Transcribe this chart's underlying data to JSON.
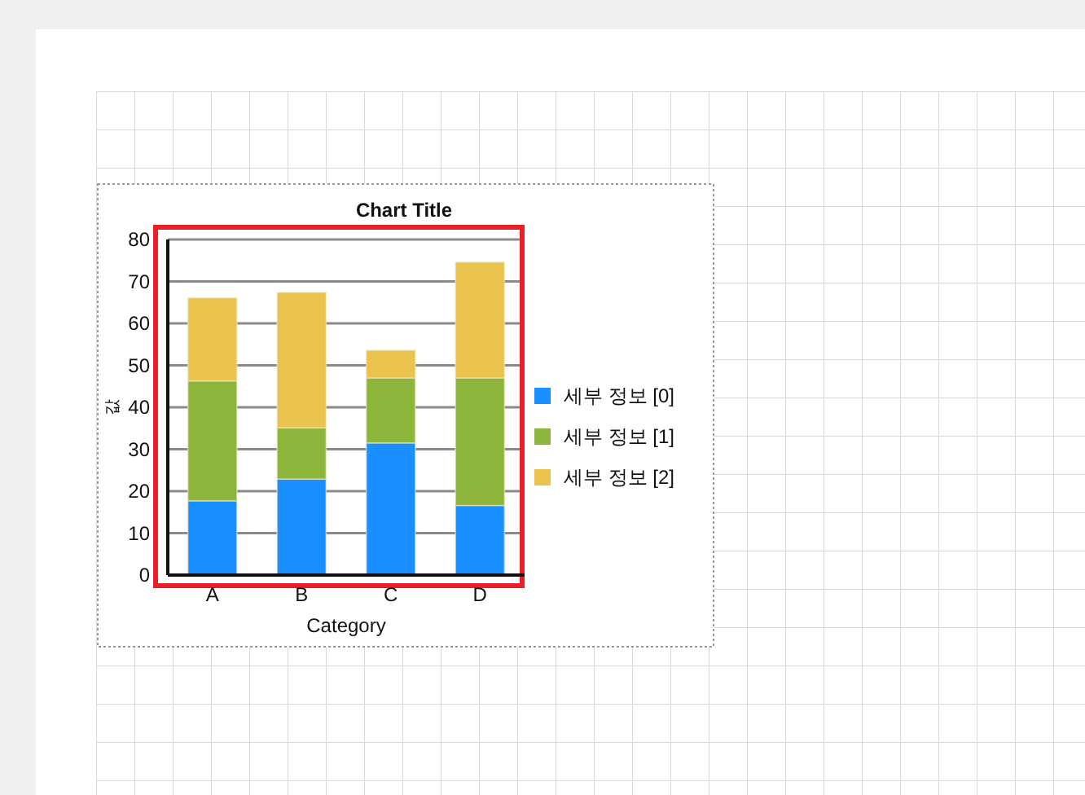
{
  "chart_data": {
    "type": "bar",
    "title": "Chart Title",
    "xlabel": "Category",
    "ylabel": "값",
    "categories": [
      "A",
      "B",
      "C",
      "D"
    ],
    "series": [
      {
        "name": "세부 정보 [0]",
        "color": "#1a8fff",
        "values": [
          17.7,
          22.9,
          31.5,
          16.6
        ]
      },
      {
        "name": "세부 정보 [1]",
        "color": "#8db53c",
        "values": [
          28.6,
          12.2,
          15.5,
          30.4
        ]
      },
      {
        "name": "세부 정보 [2]",
        "color": "#e9c34d",
        "values": [
          19.8,
          32.3,
          6.6,
          27.6
        ]
      }
    ],
    "stacked": true,
    "ylim": [
      0,
      80
    ],
    "yticks": [
      0,
      10,
      20,
      30,
      40,
      50,
      60,
      70,
      80
    ],
    "grid": "y",
    "legend": "right"
  }
}
